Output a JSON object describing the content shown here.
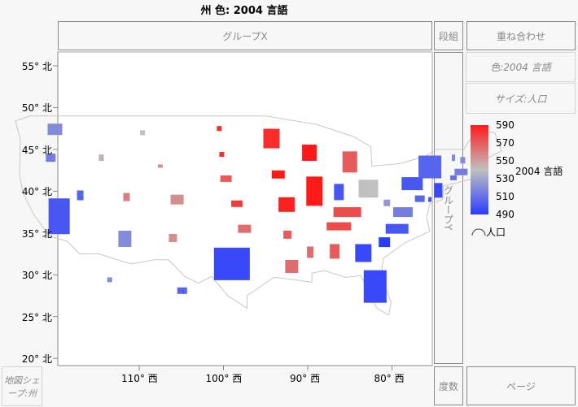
{
  "title": "州 色: 2004 言語",
  "zones": {
    "group_x": "グループX",
    "wrap": "段組",
    "overlay": "重ね合わせ",
    "group_y": "グループY",
    "color": "色:2004 言語",
    "size": "サイズ:人口",
    "map_shape": "地図シェープ:州",
    "freq": "度数",
    "page": "ページ"
  },
  "y_axis": [
    "55° 北",
    "50° 北",
    "45° 北",
    "40° 北",
    "35° 北",
    "30° 北",
    "25° 北",
    "20° 北"
  ],
  "x_axis": [
    "110° 西",
    "100° 西",
    "90° 西",
    "80° 西"
  ],
  "legend": {
    "title": "2004 言語",
    "ticks": [
      "590",
      "570",
      "550",
      "530",
      "510",
      "490"
    ],
    "min_color": "#2a3cff",
    "mid_color": "#c0c0c0",
    "max_color": "#ff1a1a",
    "size_label": "人口"
  },
  "chart_data": {
    "type": "map",
    "color_range": [
      490,
      590
    ],
    "states": [
      {
        "state": "WA",
        "value": 520
      },
      {
        "state": "OR",
        "value": 515
      },
      {
        "state": "CA",
        "value": 500
      },
      {
        "state": "NV",
        "value": 505
      },
      {
        "state": "ID",
        "value": 545
      },
      {
        "state": "MT",
        "value": 540
      },
      {
        "state": "WY",
        "value": 555
      },
      {
        "state": "UT",
        "value": 560
      },
      {
        "state": "CO",
        "value": 555
      },
      {
        "state": "AZ",
        "value": 520
      },
      {
        "state": "NM",
        "value": 555
      },
      {
        "state": "ND",
        "value": 585
      },
      {
        "state": "SD",
        "value": 585
      },
      {
        "state": "NE",
        "value": 570
      },
      {
        "state": "KS",
        "value": 580
      },
      {
        "state": "OK",
        "value": 565
      },
      {
        "state": "TX",
        "value": 495
      },
      {
        "state": "MN",
        "value": 585
      },
      {
        "state": "IA",
        "value": 590
      },
      {
        "state": "MO",
        "value": 588
      },
      {
        "state": "AR",
        "value": 570
      },
      {
        "state": "LA",
        "value": 565
      },
      {
        "state": "WI",
        "value": 590
      },
      {
        "state": "IL",
        "value": 590
      },
      {
        "state": "MI",
        "value": 570
      },
      {
        "state": "IN",
        "value": 500
      },
      {
        "state": "OH",
        "value": 540
      },
      {
        "state": "KY",
        "value": 575
      },
      {
        "state": "TN",
        "value": 575
      },
      {
        "state": "MS",
        "value": 565
      },
      {
        "state": "AL",
        "value": 570
      },
      {
        "state": "GA",
        "value": 495
      },
      {
        "state": "FL",
        "value": 495
      },
      {
        "state": "SC",
        "value": 490
      },
      {
        "state": "NC",
        "value": 500
      },
      {
        "state": "VA",
        "value": 515
      },
      {
        "state": "WV",
        "value": 525
      },
      {
        "state": "PA",
        "value": 500
      },
      {
        "state": "NY",
        "value": 505
      },
      {
        "state": "ME",
        "value": 520
      },
      {
        "state": "NH",
        "value": 520
      },
      {
        "state": "VT",
        "value": 520
      },
      {
        "state": "MA",
        "value": 515
      },
      {
        "state": "CT",
        "value": 510
      },
      {
        "state": "NJ",
        "value": 495
      },
      {
        "state": "DE",
        "value": 500
      },
      {
        "state": "MD",
        "value": 505
      },
      {
        "state": "AK",
        "value": 520
      },
      {
        "state": "HI",
        "value": 505
      }
    ]
  }
}
